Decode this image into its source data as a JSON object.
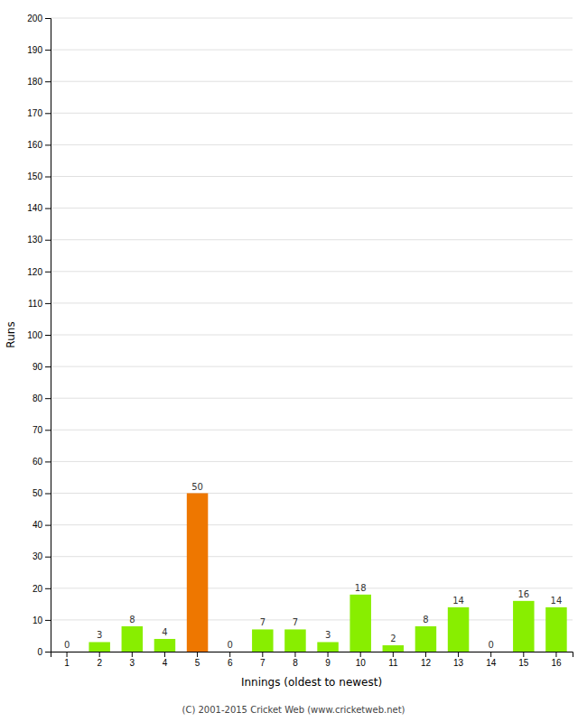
{
  "chart_data": {
    "type": "bar",
    "categories": [
      1,
      2,
      3,
      4,
      5,
      6,
      7,
      8,
      9,
      10,
      11,
      12,
      13,
      14,
      15,
      16
    ],
    "values": [
      0,
      3,
      8,
      4,
      50,
      0,
      7,
      7,
      3,
      18,
      2,
      8,
      14,
      0,
      16,
      14
    ],
    "colors": [
      "#88ee00",
      "#88ee00",
      "#88ee00",
      "#88ee00",
      "#ee7700",
      "#88ee00",
      "#88ee00",
      "#88ee00",
      "#88ee00",
      "#88ee00",
      "#88ee00",
      "#88ee00",
      "#88ee00",
      "#88ee00",
      "#88ee00",
      "#88ee00"
    ],
    "xlabel": "Innings (oldest to newest)",
    "ylabel": "Runs",
    "ylim": [
      0,
      200
    ],
    "yticks": [
      0,
      10,
      20,
      30,
      40,
      50,
      60,
      70,
      80,
      90,
      100,
      110,
      120,
      130,
      140,
      150,
      160,
      170,
      180,
      190,
      200
    ],
    "grid": true,
    "data_labels": true,
    "annotations": [
      "(C) 2001-2015 Cricket Web (www.cricketweb.net)"
    ]
  }
}
